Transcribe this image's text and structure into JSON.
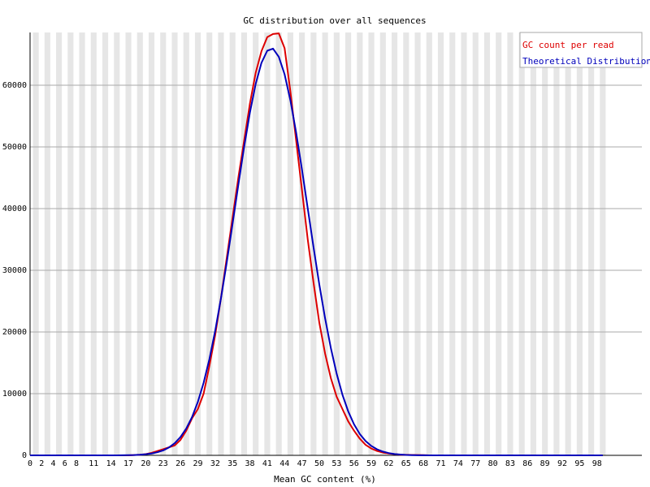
{
  "chart_data": {
    "type": "line",
    "title": "GC distribution over all sequences",
    "x_label": "Mean GC content (%)",
    "categories": [
      "0",
      null,
      "2",
      null,
      "4",
      null,
      "6",
      null,
      "8",
      null,
      null,
      "11",
      null,
      null,
      "14",
      null,
      null,
      "17",
      null,
      null,
      "20",
      null,
      null,
      "23",
      null,
      null,
      "26",
      null,
      null,
      "29",
      null,
      null,
      "32",
      null,
      null,
      "35",
      null,
      null,
      "38",
      null,
      null,
      "41",
      null,
      null,
      "44",
      null,
      null,
      "47",
      null,
      null,
      "50",
      null,
      null,
      "53",
      null,
      null,
      "56",
      null,
      null,
      "59",
      null,
      null,
      "62",
      null,
      null,
      "65",
      null,
      null,
      "68",
      null,
      null,
      "71",
      null,
      null,
      "74",
      null,
      null,
      "77",
      null,
      null,
      "80",
      null,
      null,
      "83",
      null,
      null,
      "86",
      null,
      null,
      "89",
      null,
      null,
      "92",
      null,
      null,
      "95",
      null,
      null,
      "98",
      null
    ],
    "series": [
      {
        "name": "GC count per read",
        "color": "#dd0000",
        "values": [
          0,
          0,
          0,
          0,
          0,
          0,
          0,
          0,
          0,
          0,
          0,
          0,
          0,
          0,
          0,
          0,
          0,
          0,
          50,
          100,
          200,
          400,
          700,
          1000,
          1300,
          1600,
          2500,
          4000,
          6000,
          7500,
          10000,
          14500,
          19500,
          25500,
          32000,
          38500,
          45000,
          51000,
          57000,
          62000,
          65500,
          67800,
          68300,
          68400,
          66000,
          59000,
          51000,
          43000,
          35000,
          28000,
          21500,
          16500,
          12500,
          9500,
          7500,
          5500,
          4000,
          2700,
          1700,
          1100,
          700,
          450,
          300,
          200,
          100,
          80,
          60,
          50,
          30,
          0,
          0,
          0,
          0,
          0,
          0,
          0,
          0,
          0,
          0,
          0,
          0,
          0,
          0,
          0,
          0,
          0,
          0,
          0,
          0,
          0,
          0,
          0,
          0,
          0,
          0,
          0,
          0,
          0,
          0,
          0
        ]
      },
      {
        "name": "Theoretical Distribution",
        "color": "#0000bb",
        "values": [
          0,
          0,
          0,
          0,
          0,
          0,
          0,
          0,
          0,
          0,
          0,
          0,
          0,
          0,
          0,
          0,
          10,
          25,
          50,
          100,
          175,
          300,
          500,
          800,
          1270,
          1970,
          2970,
          4350,
          6200,
          8650,
          11760,
          15600,
          20180,
          25450,
          31270,
          37500,
          43830,
          49970,
          55550,
          60210,
          63630,
          65590,
          65930,
          64600,
          61760,
          57550,
          52290,
          46330,
          40030,
          33740,
          27690,
          22210,
          17370,
          13230,
          9820,
          7120,
          5030,
          3460,
          2320,
          1520,
          970,
          605,
          367,
          217,
          125,
          70,
          40,
          20,
          10,
          0,
          0,
          0,
          0,
          0,
          0,
          0,
          0,
          0,
          0,
          0,
          0,
          0,
          0,
          0,
          0,
          0,
          0,
          0,
          0,
          0,
          0,
          0,
          0,
          0,
          0,
          0,
          0,
          0,
          0,
          0
        ]
      }
    ],
    "ylim": [
      0,
      68550
    ],
    "yticks": [
      0,
      10000,
      20000,
      30000,
      40000,
      50000,
      60000
    ],
    "grid": true,
    "legend": "top-right"
  }
}
